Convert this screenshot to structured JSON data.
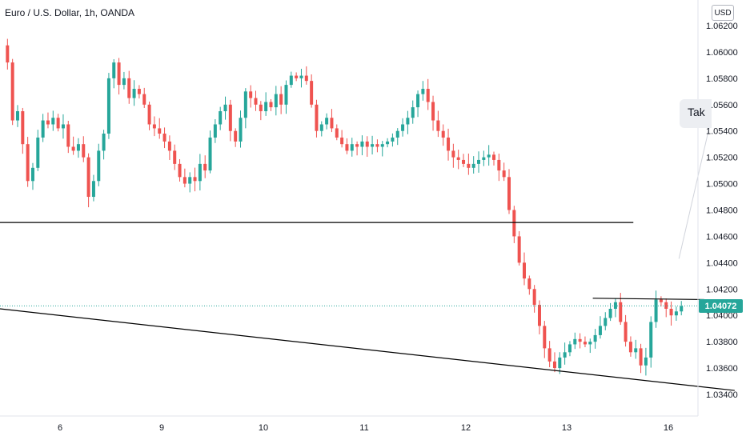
{
  "header": {
    "symbol_title": "Euro / U.S. Dollar, 1h, OANDA",
    "currency_label": "USD"
  },
  "callout": {
    "text": "Tak"
  },
  "last_price": {
    "label": "1.04072",
    "value": 1.04072,
    "color": "#26a69a"
  },
  "colors": {
    "up": "#26a69a",
    "down": "#ef5350",
    "axis_text": "#131722",
    "line": "#000000"
  },
  "chart_data": {
    "type": "candlestick",
    "ylim": [
      1.0335,
      1.0628
    ],
    "y_ticks": [
      {
        "label": "1.06200",
        "value": 1.062
      },
      {
        "label": "1.06000",
        "value": 1.06
      },
      {
        "label": "1.05800",
        "value": 1.058
      },
      {
        "label": "1.05600",
        "value": 1.056
      },
      {
        "label": "1.05400",
        "value": 1.054
      },
      {
        "label": "1.05200",
        "value": 1.052
      },
      {
        "label": "1.05000",
        "value": 1.05
      },
      {
        "label": "1.04800",
        "value": 1.048
      },
      {
        "label": "1.04600",
        "value": 1.046
      },
      {
        "label": "1.04400",
        "value": 1.044
      },
      {
        "label": "1.04200",
        "value": 1.042
      },
      {
        "label": "1.04000",
        "value": 1.04
      },
      {
        "label": "1.03800",
        "value": 1.038
      },
      {
        "label": "1.03600",
        "value": 1.036
      },
      {
        "label": "1.03400",
        "value": 1.034
      }
    ],
    "x_ticks": [
      {
        "label": "6",
        "bar": 12
      },
      {
        "label": "9",
        "bar": 33
      },
      {
        "label": "10",
        "bar": 54
      },
      {
        "label": "11",
        "bar": 75
      },
      {
        "label": "12",
        "bar": 96
      },
      {
        "label": "13",
        "bar": 117
      },
      {
        "label": "16",
        "bar": 138
      }
    ],
    "bar_count": 145,
    "anchors": [
      [
        0,
        1.0605
      ],
      [
        1,
        1.0592
      ],
      [
        2,
        1.0548
      ],
      [
        3,
        1.0555
      ],
      [
        4,
        1.053
      ],
      [
        5,
        1.0502
      ],
      [
        6,
        1.0512
      ],
      [
        7,
        1.0535
      ],
      [
        8,
        1.0548
      ],
      [
        9,
        1.0545
      ],
      [
        10,
        1.055
      ],
      [
        11,
        1.0542
      ],
      [
        12,
        1.0545
      ],
      [
        13,
        1.0528
      ],
      [
        14,
        1.0525
      ],
      [
        15,
        1.053
      ],
      [
        16,
        1.052
      ],
      [
        17,
        1.049
      ],
      [
        18,
        1.0502
      ],
      [
        19,
        1.0525
      ],
      [
        20,
        1.0538
      ],
      [
        21,
        1.058
      ],
      [
        22,
        1.0592
      ],
      [
        23,
        1.0575
      ],
      [
        24,
        1.058
      ],
      [
        25,
        1.0565
      ],
      [
        26,
        1.0572
      ],
      [
        27,
        1.0568
      ],
      [
        28,
        1.056
      ],
      [
        29,
        1.0545
      ],
      [
        30,
        1.0542
      ],
      [
        31,
        1.0538
      ],
      [
        32,
        1.0532
      ],
      [
        33,
        1.0525
      ],
      [
        34,
        1.0515
      ],
      [
        35,
        1.0505
      ],
      [
        36,
        1.05
      ],
      [
        37,
        1.0505
      ],
      [
        38,
        1.0502
      ],
      [
        39,
        1.0515
      ],
      [
        40,
        1.051
      ],
      [
        41,
        1.0535
      ],
      [
        42,
        1.0545
      ],
      [
        43,
        1.0555
      ],
      [
        44,
        1.056
      ],
      [
        45,
        1.054
      ],
      [
        46,
        1.0532
      ],
      [
        47,
        1.055
      ],
      [
        48,
        1.057
      ],
      [
        49,
        1.0565
      ],
      [
        50,
        1.056
      ],
      [
        51,
        1.0555
      ],
      [
        52,
        1.0562
      ],
      [
        53,
        1.0558
      ],
      [
        54,
        1.0568
      ],
      [
        55,
        1.056
      ],
      [
        56,
        1.0575
      ],
      [
        57,
        1.0582
      ],
      [
        58,
        1.058
      ],
      [
        59,
        1.0582
      ],
      [
        60,
        1.0578
      ],
      [
        61,
        1.056
      ],
      [
        62,
        1.054
      ],
      [
        63,
        1.0545
      ],
      [
        64,
        1.055
      ],
      [
        65,
        1.0542
      ],
      [
        66,
        1.0535
      ],
      [
        67,
        1.053
      ],
      [
        68,
        1.0525
      ],
      [
        69,
        1.053
      ],
      [
        70,
        1.0528
      ],
      [
        71,
        1.0532
      ],
      [
        72,
        1.0528
      ],
      [
        73,
        1.053
      ],
      [
        74,
        1.0528
      ],
      [
        75,
        1.053
      ],
      [
        76,
        1.0532
      ],
      [
        77,
        1.0535
      ],
      [
        78,
        1.054
      ],
      [
        79,
        1.0545
      ],
      [
        80,
        1.055
      ],
      [
        81,
        1.0558
      ],
      [
        82,
        1.0568
      ],
      [
        83,
        1.0572
      ],
      [
        84,
        1.0562
      ],
      [
        85,
        1.0548
      ],
      [
        86,
        1.054
      ],
      [
        87,
        1.0535
      ],
      [
        88,
        1.0525
      ],
      [
        89,
        1.052
      ],
      [
        90,
        1.0518
      ],
      [
        91,
        1.0515
      ],
      [
        92,
        1.0512
      ],
      [
        93,
        1.0515
      ],
      [
        94,
        1.0518
      ],
      [
        95,
        1.052
      ],
      [
        96,
        1.0522
      ],
      [
        97,
        1.0518
      ],
      [
        98,
        1.051
      ],
      [
        99,
        1.0505
      ],
      [
        100,
        1.048
      ],
      [
        101,
        1.046
      ],
      [
        102,
        1.044
      ],
      [
        103,
        1.0428
      ],
      [
        104,
        1.042
      ],
      [
        105,
        1.0408
      ],
      [
        106,
        1.0392
      ],
      [
        107,
        1.0375
      ],
      [
        108,
        1.0365
      ],
      [
        109,
        1.036
      ],
      [
        110,
        1.0368
      ],
      [
        111,
        1.0372
      ],
      [
        112,
        1.0378
      ],
      [
        113,
        1.0382
      ],
      [
        114,
        1.038
      ],
      [
        115,
        1.0378
      ],
      [
        116,
        1.038
      ],
      [
        117,
        1.0385
      ],
      [
        118,
        1.0392
      ],
      [
        119,
        1.0398
      ],
      [
        120,
        1.0405
      ],
      [
        121,
        1.041
      ],
      [
        122,
        1.0395
      ],
      [
        123,
        1.038
      ],
      [
        124,
        1.0372
      ],
      [
        125,
        1.0375
      ],
      [
        126,
        1.0362
      ],
      [
        127,
        1.0368
      ],
      [
        128,
        1.0395
      ],
      [
        129,
        1.0412
      ],
      [
        130,
        1.041
      ],
      [
        131,
        1.0405
      ],
      [
        132,
        1.04
      ],
      [
        133,
        1.0403
      ],
      [
        134,
        1.0407
      ]
    ],
    "lines": [
      {
        "name": "horizontal-level",
        "from": [
          0,
          1.04705
        ],
        "to": [
          125,
          1.04705
        ]
      },
      {
        "name": "descending-trendline",
        "from": [
          0,
          1.0405
        ],
        "to": [
          145,
          1.0343
        ]
      },
      {
        "name": "resistance-line",
        "from": [
          117,
          1.0413
        ],
        "to": [
          139,
          1.0412
        ]
      },
      {
        "name": "callout-pointer",
        "from": [
          134,
          1.0443
        ],
        "to": [
          140,
          1.0543
        ]
      }
    ],
    "last_price_line": 1.04072
  }
}
